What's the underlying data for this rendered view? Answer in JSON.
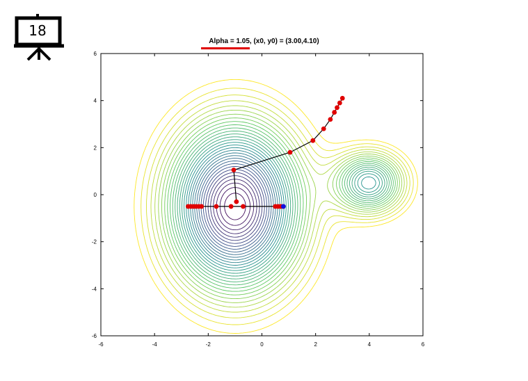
{
  "slide": {
    "number": "18",
    "icon": "presentation-board-icon"
  },
  "chart_data": {
    "type": "contour",
    "title": "Alpha = 1.05, (x0, y0) = (3.00,4.10)",
    "xlabel": "",
    "ylabel": "",
    "xlim": [
      -6,
      6
    ],
    "ylim": [
      -6,
      6
    ],
    "x_ticks": [
      "-6",
      "-4",
      "-2",
      "0",
      "2",
      "4",
      "6"
    ],
    "y_ticks": [
      "6",
      "4",
      "2",
      "0",
      "-2",
      "-4",
      "-6"
    ],
    "grid": false,
    "colormap": "viridis",
    "minima": [
      {
        "x": -1.0,
        "y": -0.5,
        "depth": "global"
      },
      {
        "x": 4.0,
        "y": 0.5,
        "depth": "local"
      }
    ],
    "paths": [
      {
        "name": "",
        "color": "#000000",
        "marker_color": "#e00000",
        "points": [
          [
            3.0,
            4.1
          ],
          [
            2.9,
            3.9
          ],
          [
            2.8,
            3.7
          ],
          [
            2.7,
            3.5
          ],
          [
            2.55,
            3.2
          ],
          [
            2.3,
            2.8
          ],
          [
            1.9,
            2.3
          ],
          [
            1.05,
            1.8
          ],
          [
            -1.05,
            1.05
          ],
          [
            -0.95,
            -0.3
          ]
        ]
      },
      {
        "name": "",
        "color": "#000000",
        "marker_color": "#e00000",
        "points": [
          [
            0.8,
            -0.5
          ],
          [
            0.7,
            -0.5
          ],
          [
            0.6,
            -0.5
          ],
          [
            0.5,
            -0.5
          ],
          [
            -0.7,
            -0.5
          ],
          [
            -1.15,
            -0.5
          ],
          [
            -1.7,
            -0.5
          ],
          [
            -2.25,
            -0.5
          ],
          [
            -2.35,
            -0.5
          ],
          [
            -2.45,
            -0.5
          ],
          [
            -2.55,
            -0.5
          ],
          [
            -2.65,
            -0.5
          ],
          [
            -2.75,
            -0.5
          ]
        ],
        "start": {
          "x": 0.8,
          "y": -0.5,
          "color": "#1010e0"
        }
      }
    ]
  }
}
